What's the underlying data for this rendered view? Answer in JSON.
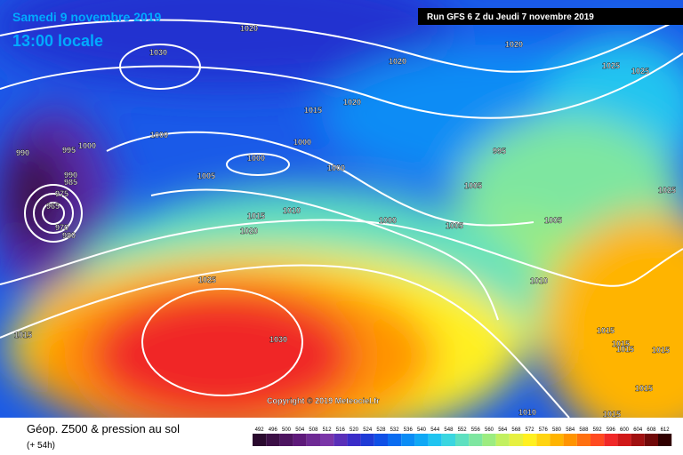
{
  "header": {
    "date": "Samedi 9 novembre 2019",
    "time": "13:00 locale",
    "run": "Run GFS 6 Z du Jeudi 7 novembre 2019"
  },
  "copyright": "Copyright © 2019 Meteociel.fr",
  "footer": {
    "title": "Géop. Z500 & pression au sol",
    "lead": "(+ 54h)"
  },
  "isobar_labels": [
    "1020",
    "1030",
    "1020",
    "1020",
    "1025",
    "1025",
    "1020",
    "1015",
    "1000",
    "1000",
    "1000",
    "995",
    "995",
    "990",
    "1000",
    "1000",
    "990",
    "985",
    "1005",
    "1005",
    "1025",
    "975",
    "965",
    "1010",
    "1015",
    "1000",
    "1005",
    "970",
    "980",
    "1005",
    "1020",
    "1025",
    "1010",
    "1015",
    "1030",
    "1015",
    "1015",
    "1015",
    "1015",
    "1015",
    "1010",
    "1015"
  ],
  "legend": {
    "ticks": [
      492,
      496,
      500,
      504,
      508,
      512,
      516,
      520,
      524,
      528,
      532,
      536,
      540,
      544,
      548,
      552,
      556,
      560,
      564,
      568,
      572,
      576,
      580,
      584,
      588,
      592,
      596,
      600,
      604,
      608,
      612
    ],
    "colors": [
      "#2a0a2e",
      "#3b0f45",
      "#4d1460",
      "#5e1a7a",
      "#6e2a94",
      "#7a35a8",
      "#5a2fb8",
      "#3a2cc8",
      "#1f3bd6",
      "#1050e6",
      "#0a6cf0",
      "#0a8cf5",
      "#10a8f5",
      "#20c4f0",
      "#3ad6e0",
      "#5ee0c0",
      "#7ee6a0",
      "#9cec80",
      "#c2f060",
      "#e6f040",
      "#fff020",
      "#ffd410",
      "#ffb400",
      "#ff9400",
      "#ff7010",
      "#ff4a20",
      "#f02828",
      "#d01818",
      "#a01010",
      "#700808",
      "#300000"
    ]
  }
}
